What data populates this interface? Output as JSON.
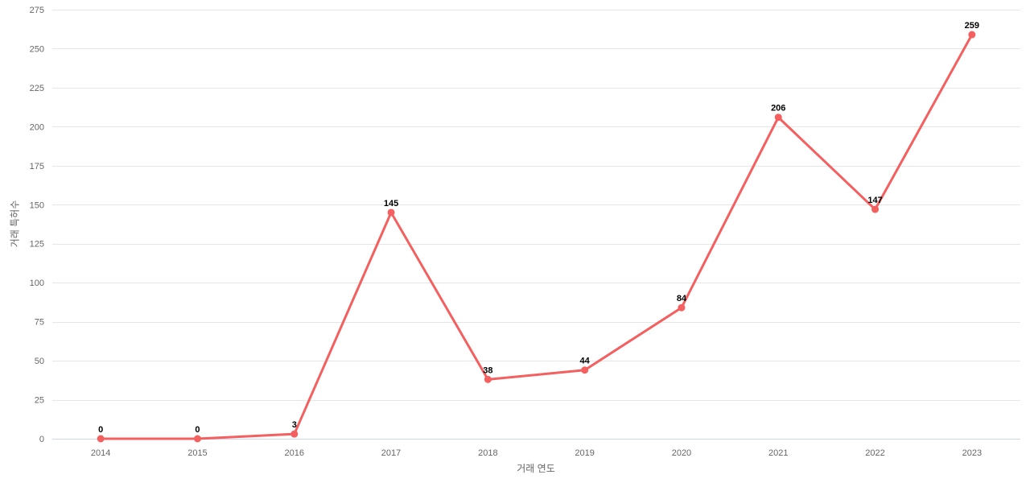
{
  "page": {
    "background": "#ffffff"
  },
  "chart_data": {
    "type": "line",
    "title": "",
    "xlabel": "거래 연도",
    "ylabel": "거래 특허수",
    "x": [
      "2014",
      "2015",
      "2016",
      "2017",
      "2018",
      "2019",
      "2020",
      "2021",
      "2022",
      "2023"
    ],
    "series": [
      {
        "name": "거래 특허수",
        "values": [
          0,
          0,
          3,
          145,
          38,
          44,
          84,
          206,
          147,
          259
        ],
        "color": "#f45f5f"
      }
    ],
    "ylim": [
      0,
      275
    ],
    "yticks": [
      0,
      25,
      50,
      75,
      100,
      125,
      150,
      175,
      200,
      225,
      250,
      275
    ],
    "grid": "horizontal",
    "legend": false,
    "data_labels": true,
    "style": {
      "grid_color": "#e6e6e6",
      "axis_line_color": "#ccd6eb",
      "tick_label_color": "#666666",
      "axis_title_color": "#666666",
      "data_label_color": "#000000"
    }
  }
}
